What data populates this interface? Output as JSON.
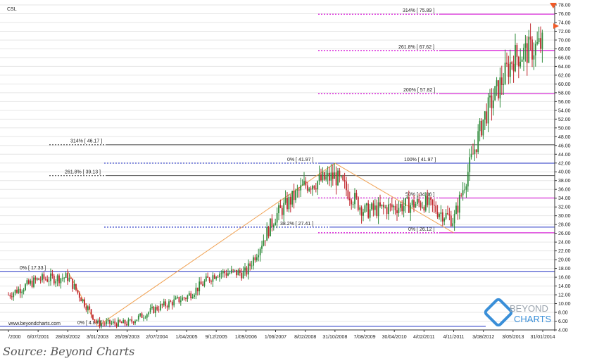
{
  "chart_data": {
    "type": "candlestick",
    "title": "CSL",
    "watermark": "www.beyondcharts.com",
    "logo": {
      "line1": "BEYOND",
      "line2": "CHARTS"
    },
    "ylim": [
      4,
      78
    ],
    "y_ticks": [
      4,
      6,
      8,
      10,
      12,
      14,
      16,
      18,
      20,
      22,
      24,
      26,
      28,
      30,
      32,
      34,
      36,
      38,
      40,
      42,
      44,
      46,
      48,
      50,
      52,
      54,
      56,
      58,
      60,
      62,
      64,
      66,
      68,
      70,
      72,
      74,
      76,
      78
    ],
    "x_ticks": [
      "/2000",
      "6/07/2001",
      "28/03/2002",
      "3/01/2003",
      "26/09/2003",
      "2/07/2004",
      "1/04/2005",
      "9/12/2005",
      "1/09/2006",
      "1/06/2007",
      "8/02/2008",
      "31/10/2008",
      "7/08/2009",
      "30/04/2010",
      "4/02/2011",
      "4/11/2011",
      "3/08/2012",
      "3/05/2013",
      "31/01/2014"
    ],
    "price_path": [
      {
        "x": "/2000",
        "y": 12
      },
      {
        "x": "6/07/2001",
        "y": 15.5
      },
      {
        "x": "28/03/2002",
        "y": 16
      },
      {
        "x": "3/01/2003",
        "y": 5.5
      },
      {
        "x": "26/09/2003",
        "y": 5.5
      },
      {
        "x": "2/07/2004",
        "y": 9
      },
      {
        "x": "1/04/2005",
        "y": 11.5
      },
      {
        "x": "9/12/2005",
        "y": 17
      },
      {
        "x": "1/09/2006",
        "y": 17
      },
      {
        "x": "1/06/2007",
        "y": 30
      },
      {
        "x": "8/02/2008",
        "y": 37
      },
      {
        "x": "31/10/2008",
        "y": 39
      },
      {
        "x": "7/08/2009",
        "y": 31
      },
      {
        "x": "30/04/2010",
        "y": 32
      },
      {
        "x": "4/02/2011",
        "y": 33
      },
      {
        "x": "4/11/2011",
        "y": 29
      },
      {
        "x": "3/08/2012",
        "y": 52
      },
      {
        "x": "3/05/2013",
        "y": 66
      },
      {
        "x": "31/01/2014",
        "y": 69
      }
    ],
    "levels": [
      {
        "pct": "0%",
        "value": "17.33",
        "y": 17.33
      },
      {
        "pct": "314%",
        "value": "46.17",
        "y": 46.17
      },
      {
        "pct": "261.8%",
        "value": "39.13",
        "y": 39.13
      },
      {
        "pct": "0%",
        "value": "41.97",
        "y": 41.97
      },
      {
        "pct": "100%",
        "value": "41.97",
        "y": 41.97
      },
      {
        "pct": "38.2%",
        "value": "27.41",
        "y": 27.41
      },
      {
        "pct": "50%",
        "value": "34.06",
        "y": 34.06
      },
      {
        "pct": "0%",
        "value": "26.12",
        "y": 26.12
      },
      {
        "pct": "0%",
        "value": "4.83",
        "y": 4.83
      },
      {
        "pct": "314%",
        "value": "75.89",
        "y": 75.89
      },
      {
        "pct": "261.8%",
        "value": "67.62",
        "y": 67.62
      },
      {
        "pct": "200%",
        "value": "57.82",
        "y": 57.82
      }
    ],
    "trendlines": [
      {
        "from": {
          "x": "28/03/2002",
          "y": 17.33
        },
        "to": {
          "x": "3/01/2003",
          "y": 4.83
        }
      },
      {
        "from": {
          "x": "3/01/2003",
          "y": 4.83
        },
        "to": {
          "x": "31/10/2008",
          "y": 41.97
        }
      },
      {
        "from": {
          "x": "31/10/2008",
          "y": 41.97
        },
        "to": {
          "x": "4/11/2011",
          "y": 26.12
        }
      }
    ],
    "grid": true,
    "colors": {
      "up": "#2e8b3a",
      "down": "#c0272d",
      "fib": "#d400d4",
      "blue": "#2231c4",
      "trend": "#f0a050",
      "axis": "#333333"
    }
  },
  "source_text": "Source: Beyond Charts"
}
